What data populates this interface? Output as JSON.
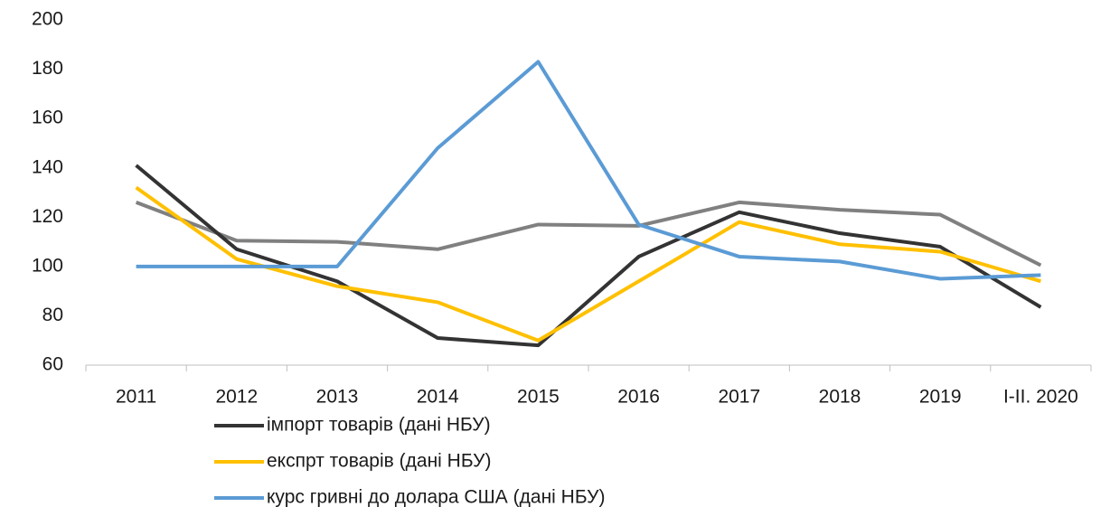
{
  "chart_data": {
    "type": "line",
    "categories": [
      "2011",
      "2012",
      "2013",
      "2014",
      "2015",
      "2016",
      "2017",
      "2018",
      "2019",
      "I-II. 2020"
    ],
    "series": [
      {
        "name": "імпорт товарів (дані НБУ)",
        "color": "#333333",
        "values": [
          141,
          107,
          94,
          71,
          68,
          104,
          122,
          113.5,
          108,
          83.5
        ]
      },
      {
        "name": "експрт товарів (дані НБУ)",
        "color": "#ffc000",
        "values": [
          132,
          103,
          92,
          85.5,
          70,
          94,
          118,
          109,
          106,
          94
        ]
      },
      {
        "name": "курс гривні до долара США (дані НБУ)",
        "color": "#5b9bd5",
        "values": [
          100,
          100,
          100,
          148,
          183,
          117,
          104,
          102,
          95,
          96.5
        ]
      },
      {
        "color": "#808080",
        "values": [
          126,
          110.5,
          110,
          107,
          117,
          116.5,
          126,
          123,
          121,
          100.5
        ]
      }
    ],
    "ylim": [
      60,
      200
    ],
    "yticks": [
      60,
      80,
      100,
      120,
      140,
      160,
      180,
      200
    ],
    "grid": false
  }
}
